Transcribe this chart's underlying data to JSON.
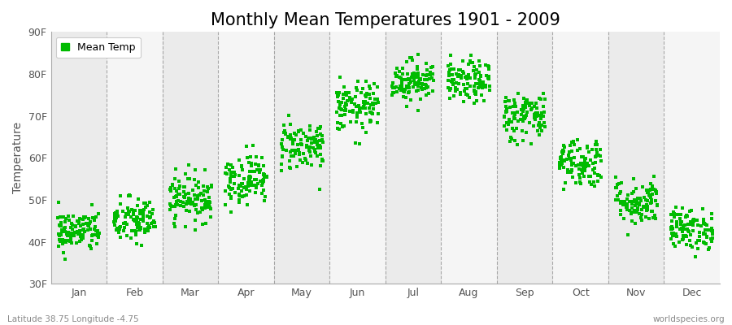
{
  "title": "Monthly Mean Temperatures 1901 - 2009",
  "ylabel": "Temperature",
  "bottom_left_text": "Latitude 38.75 Longitude -4.75",
  "bottom_right_text": "worldspecies.org",
  "ylim": [
    30,
    90
  ],
  "yticks": [
    30,
    40,
    50,
    60,
    70,
    80,
    90
  ],
  "ytick_labels": [
    "30F",
    "40F",
    "50F",
    "60F",
    "70F",
    "80F",
    "90F"
  ],
  "months": [
    "Jan",
    "Feb",
    "Mar",
    "Apr",
    "May",
    "Jun",
    "Jul",
    "Aug",
    "Sep",
    "Oct",
    "Nov",
    "Dec"
  ],
  "monthly_mean_F": [
    42.5,
    45.0,
    50.5,
    55.0,
    63.0,
    72.0,
    78.5,
    78.0,
    70.0,
    59.0,
    49.5,
    43.0
  ],
  "monthly_std_F": [
    2.5,
    2.8,
    2.8,
    3.0,
    3.0,
    3.0,
    2.5,
    2.5,
    3.0,
    3.0,
    2.8,
    2.5
  ],
  "n_years": 109,
  "marker_color": "#00bb00",
  "marker_size": 6,
  "background_color": "#f0f0f0",
  "band_colors": [
    "#ebebeb",
    "#f5f5f5"
  ],
  "grid_color": "#888888",
  "legend_label": "Mean Temp",
  "title_fontsize": 15,
  "label_fontsize": 10,
  "tick_fontsize": 9
}
